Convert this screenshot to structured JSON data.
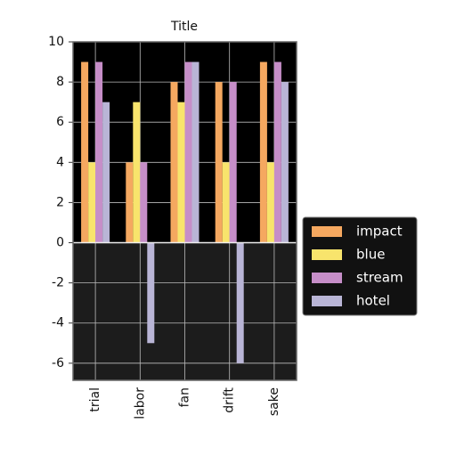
{
  "chart_data": {
    "type": "bar",
    "title": "Title",
    "categories": [
      "trial",
      "labor",
      "fan",
      "drift",
      "sake"
    ],
    "series": [
      {
        "name": "impact",
        "color": "#f5a860",
        "values": [
          9,
          4,
          8,
          8,
          9
        ]
      },
      {
        "name": "blue",
        "color": "#f8e46c",
        "values": [
          4,
          7,
          7,
          4,
          4
        ]
      },
      {
        "name": "stream",
        "color": "#c68ec8",
        "values": [
          9,
          4,
          9,
          8,
          9
        ]
      },
      {
        "name": "hotel",
        "color": "#b9b5d6",
        "values": [
          7,
          -5,
          9,
          -6,
          8
        ]
      }
    ],
    "ylim": [
      -6.85,
      10
    ],
    "yticks": [
      -6,
      -4,
      -2,
      0,
      2,
      4,
      6,
      8,
      10
    ],
    "grid": true,
    "legend": "right"
  }
}
